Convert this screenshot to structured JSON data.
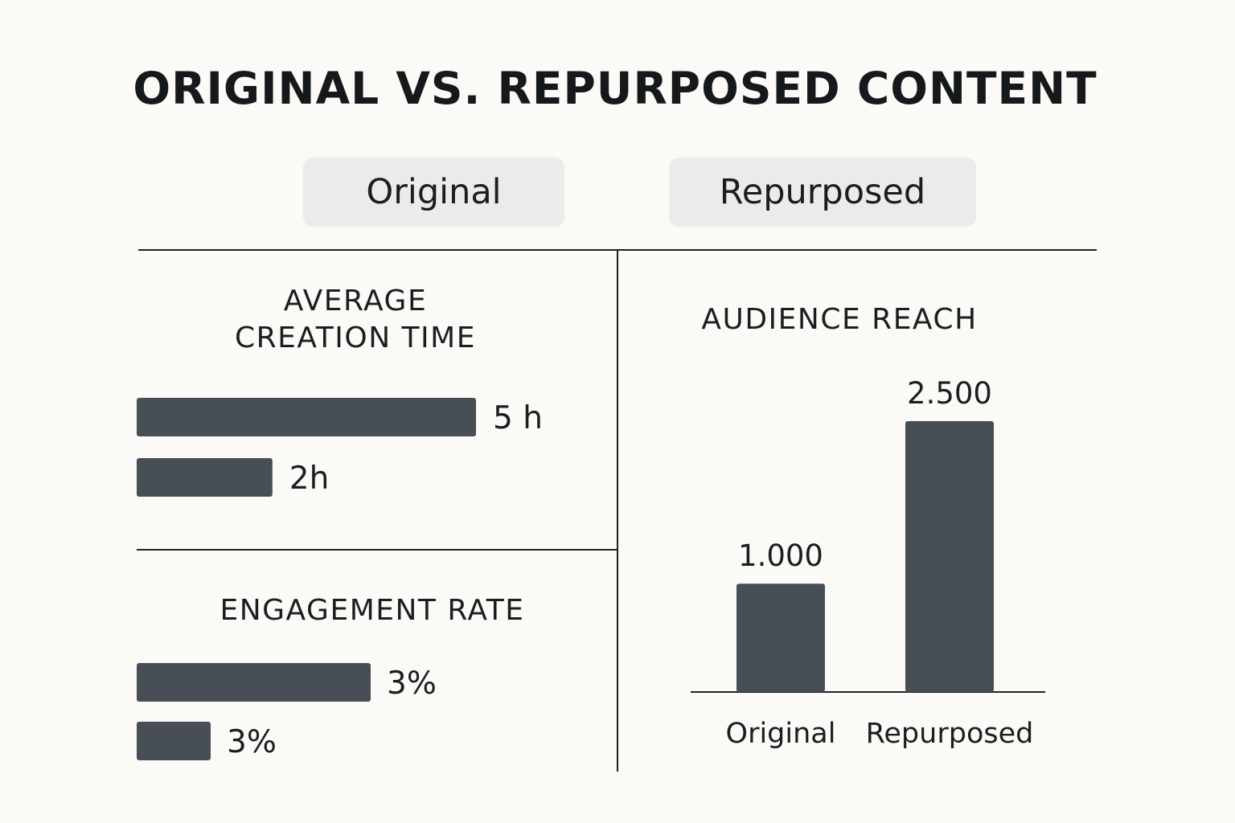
{
  "title": "ORIGINAL VS. REPURPOSED CONTENT",
  "headers": {
    "original": "Original",
    "repurposed": "Repurposed"
  },
  "colors": {
    "bar": "#474e55",
    "background": "#fbfaf6",
    "pill": "#ebebea"
  },
  "chart_data": [
    {
      "type": "bar",
      "orientation": "horizontal",
      "title_lines": [
        "AVERAGE",
        "CREATION TIME"
      ],
      "series": [
        {
          "name": "Original",
          "value": 5,
          "label": "5 h"
        },
        {
          "name": "Repurposed",
          "value": 2,
          "label": "2h"
        }
      ]
    },
    {
      "type": "bar",
      "orientation": "horizontal",
      "title": "ENGAGEMENT RATE",
      "series": [
        {
          "name": "Original",
          "value": 3,
          "label": "3%"
        },
        {
          "name": "Repurposed",
          "value": 3,
          "label": "3%"
        }
      ]
    },
    {
      "type": "bar",
      "orientation": "vertical",
      "title": "AUDIENCE REACH",
      "categories": [
        "Original",
        "Repurposed"
      ],
      "values": [
        1000,
        2500
      ],
      "value_labels": [
        "1.000",
        "2.500"
      ],
      "ylim": [
        0,
        2500
      ]
    }
  ]
}
